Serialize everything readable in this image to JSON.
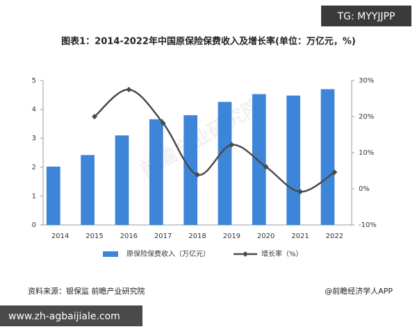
{
  "chart_data": {
    "type": "bar-line",
    "title": "图表1：2014-2022年中国原保险保费收入及增长率(单位：万亿元，%)",
    "categories": [
      "2014",
      "2015",
      "2016",
      "2017",
      "2018",
      "2019",
      "2020",
      "2021",
      "2022"
    ],
    "series": [
      {
        "name": "原保险保费收入（万亿元）",
        "type": "bar",
        "color": "#3d85d8",
        "values": [
          2.02,
          2.42,
          3.1,
          3.66,
          3.8,
          4.26,
          4.53,
          4.48,
          4.7
        ]
      },
      {
        "name": "增长率（%）",
        "type": "line",
        "axis": "y2",
        "color": "#4a4a4a",
        "values": [
          null,
          20.0,
          27.5,
          18.2,
          3.9,
          12.2,
          6.1,
          -0.8,
          4.6
        ]
      }
    ],
    "ylim": [
      0,
      5
    ],
    "yticks": [
      0,
      1,
      2,
      3,
      4,
      5
    ],
    "y2lim": [
      -10,
      30
    ],
    "y2ticks": [
      {
        "value": -10,
        "label": "-10%"
      },
      {
        "value": 0,
        "label": "0%"
      },
      {
        "value": 10,
        "label": "10%"
      },
      {
        "value": 20,
        "label": "20%"
      },
      {
        "value": 30,
        "label": "30%"
      }
    ],
    "grid": false,
    "legend": "bottom",
    "watermark": "前瞻产业研究院"
  },
  "page": {
    "badge": "TG: MYYJJPP",
    "source": "资料来源：银保监 前瞻产业研究院",
    "brand": "@前瞻经济学人APP",
    "website": "www.zh-agbaijiale.com"
  }
}
